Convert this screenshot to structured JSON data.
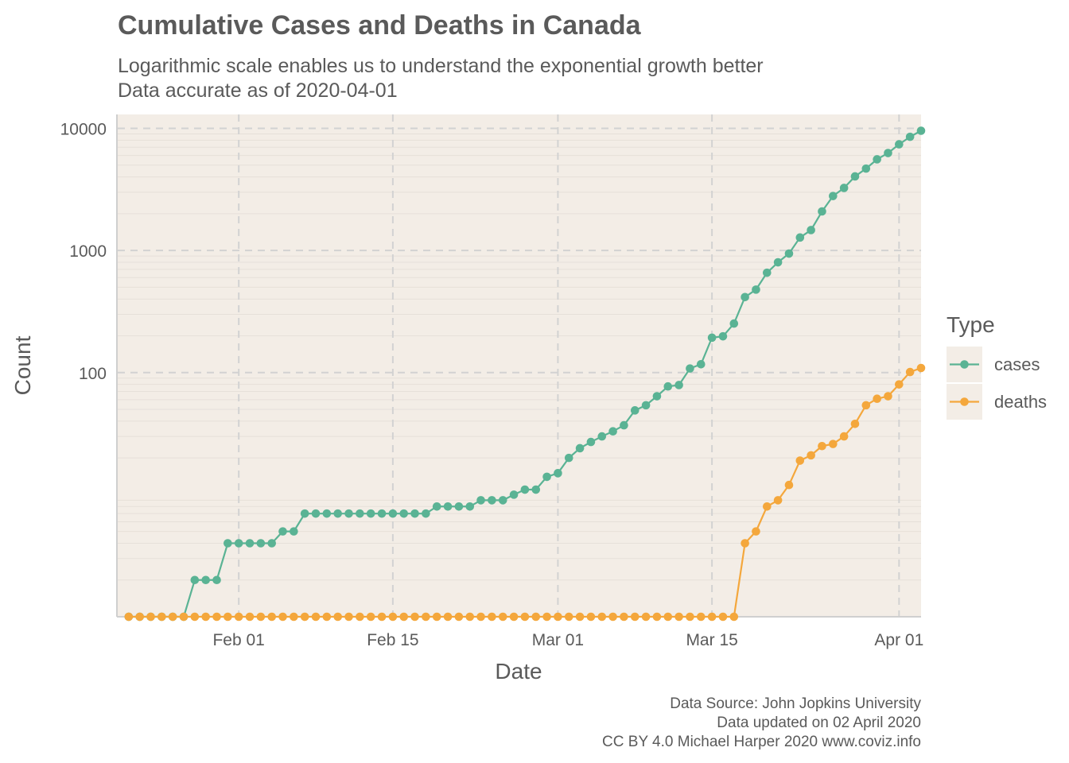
{
  "chart_data": {
    "type": "line",
    "title": "Cumulative Cases and Deaths in Canada",
    "subtitle_lines": [
      "Logarithmic scale enables us to understand the exponential growth better",
      "Data accurate as of 2020-04-01"
    ],
    "xlabel": "Date",
    "ylabel": "Count",
    "y_scale": "log10",
    "ylim": [
      1,
      13000
    ],
    "xlim": [
      "2020-01-21",
      "2020-04-03"
    ],
    "x_ticks": [
      {
        "date": "2020-02-01",
        "label": "Feb 01"
      },
      {
        "date": "2020-02-15",
        "label": "Feb 15"
      },
      {
        "date": "2020-03-01",
        "label": "Mar 01"
      },
      {
        "date": "2020-03-15",
        "label": "Mar 15"
      },
      {
        "date": "2020-04-01",
        "label": "Apr 01"
      }
    ],
    "y_ticks": [
      {
        "value": 100,
        "label": "100"
      },
      {
        "value": 1000,
        "label": "1000"
      },
      {
        "value": 10000,
        "label": "10000"
      }
    ],
    "grid": true,
    "legend": {
      "title": "Type",
      "position": "right"
    },
    "start_date": "2020-01-22",
    "series": [
      {
        "name": "cases",
        "color": "#5ab394",
        "values": [
          0,
          0,
          0,
          0,
          1,
          1,
          2,
          2,
          2,
          4,
          4,
          4,
          4,
          4,
          5,
          5,
          7,
          7,
          7,
          7,
          7,
          7,
          7,
          7,
          7,
          7,
          7,
          7,
          8,
          8,
          8,
          8,
          9,
          9,
          9,
          10,
          11,
          11,
          14,
          15,
          20,
          24,
          27,
          30,
          33,
          37,
          49,
          54,
          64,
          77,
          79,
          108,
          117,
          193,
          198,
          252,
          415,
          478,
          657,
          800,
          943,
          1277,
          1469,
          2088,
          2790,
          3251,
          4042,
          4682,
          5576,
          6280,
          7398,
          8527,
          9560
        ]
      },
      {
        "name": "deaths",
        "color": "#f4a73c",
        "values": [
          0,
          0,
          0,
          0,
          0,
          0,
          0,
          0,
          0,
          0,
          0,
          0,
          0,
          0,
          0,
          0,
          0,
          0,
          0,
          0,
          0,
          0,
          0,
          0,
          0,
          0,
          0,
          0,
          0,
          0,
          0,
          0,
          0,
          0,
          0,
          0,
          0,
          0,
          0,
          0,
          0,
          0,
          0,
          0,
          0,
          0,
          0,
          0,
          1,
          1,
          1,
          1,
          1,
          1,
          1,
          1,
          4,
          5,
          8,
          9,
          12,
          19,
          21,
          25,
          26,
          30,
          38,
          54,
          61,
          64,
          80,
          101,
          109
        ]
      }
    ]
  },
  "caption_lines": [
    "Data Source: John Jopkins University",
    "Data updated on 02 April 2020",
    "CC BY 4.0 Michael Harper 2020 www.coviz.info"
  ]
}
